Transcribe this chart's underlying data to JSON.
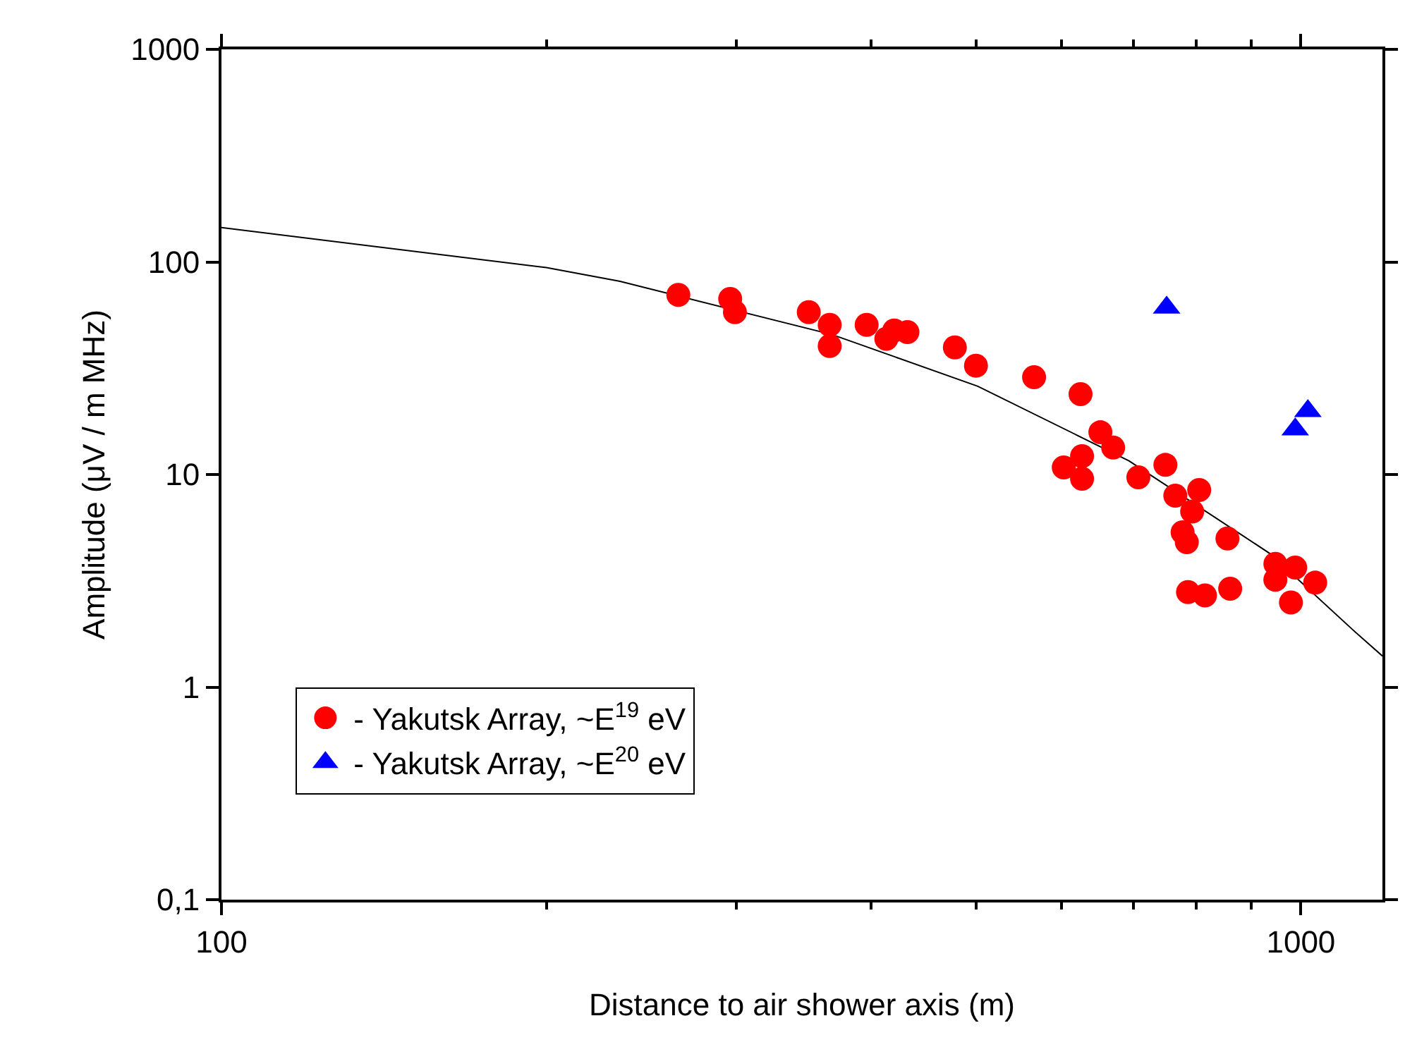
{
  "chart_data": {
    "type": "scatter",
    "xlabel": "Distance to air shower axis (m)",
    "ylabel": "Amplitude (μV / m MHz)",
    "log": "xy",
    "legend": "bottom left",
    "grid": false,
    "xlim": [
      100,
      1190
    ],
    "ylim": [
      0.1,
      1000
    ],
    "xticks": [
      100,
      {
        "value": 200,
        "label": null
      },
      {
        "value": 300,
        "label": null
      },
      {
        "value": 400,
        "label": null
      },
      {
        "value": 500,
        "label": null
      },
      {
        "value": 600,
        "label": null
      },
      {
        "value": 700,
        "label": null
      },
      {
        "value": 800,
        "label": null
      },
      {
        "value": 900,
        "label": null
      },
      1000
    ],
    "yticks": [
      {
        "value": 0.1,
        "label": "0,1"
      },
      1,
      10,
      100,
      1000
    ],
    "series": [
      {
        "type": "line",
        "marker": "none",
        "color": "#000000",
        "x": [
          100,
          200,
          234,
          368,
          502,
          693,
          936,
          1121,
          1190
        ],
        "values": [
          145,
          94,
          81,
          45.5,
          26,
          11.6,
          4.25,
          1.83,
          1.4
        ]
      },
      {
        "name": "- Yakutsk Array, ~E$^{19}$ eV",
        "marker": "circle",
        "color": "#ff0000",
        "x": [
          265,
          296,
          299,
          350,
          366,
          366,
          396,
          413,
          420,
          432,
          478,
          500,
          566,
          625,
          652,
          670,
          603,
          627,
          627,
          707,
          749,
          765,
          805,
          793,
          777,
          784,
          855,
          786,
          815,
          860,
          947,
          988,
          947,
          1031,
          979
        ],
        "values": [
          70,
          67,
          58,
          58,
          50.6,
          40.2,
          50.6,
          43.5,
          47.6,
          46.8,
          39.6,
          32.5,
          28.7,
          23.9,
          15.8,
          13.4,
          10.8,
          12.2,
          9.55,
          9.7,
          11.1,
          7.95,
          8.45,
          6.7,
          5.35,
          4.8,
          5.0,
          2.8,
          2.7,
          2.9,
          3.8,
          3.65,
          3.2,
          3.1,
          2.5
        ]
      },
      {
        "name": "- Yakutsk Array, ~E$^{20}$ eV",
        "marker": "triangle",
        "color": "#0000ff",
        "x": [
          751,
          988,
          1015
        ],
        "values": [
          61,
          16.3,
          19.9
        ]
      }
    ]
  }
}
